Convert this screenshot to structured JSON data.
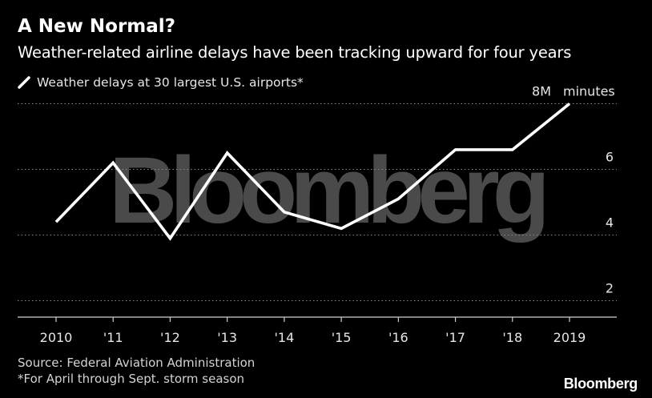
{
  "header": {
    "title": "A New Normal?",
    "subtitle": "Weather-related airline delays have been tracking upward for four years"
  },
  "legend": {
    "label": "Weather delays at 30 largest U.S. airports*"
  },
  "footer": {
    "source": "Source: Federal Aviation Administration",
    "footnote": "*For April through Sept. storm season",
    "brand": "Bloomberg"
  },
  "watermark": "Bloomberg",
  "colors": {
    "background": "#000000",
    "line": "#ffffff",
    "grid": "#8a8a8a",
    "watermark": "#4a4a4a"
  },
  "chart_data": {
    "type": "line",
    "title": "A New Normal?",
    "subtitle": "Weather-related airline delays have been tracking upward for four years",
    "xlabel": "",
    "ylabel": "",
    "unit_label": "minutes",
    "categories": [
      "2010",
      "'11",
      "'12",
      "'13",
      "'14",
      "'15",
      "'16",
      "'17",
      "'18",
      "2019"
    ],
    "series": [
      {
        "name": "Weather delays at 30 largest U.S. airports*",
        "values": [
          4.4,
          6.2,
          3.9,
          6.5,
          4.7,
          4.2,
          5.1,
          6.6,
          6.6,
          8.0
        ]
      }
    ],
    "y_ticks": [
      {
        "value": 2,
        "label": "2"
      },
      {
        "value": 4,
        "label": "4"
      },
      {
        "value": 6,
        "label": "6"
      },
      {
        "value": 8,
        "label": "8M"
      }
    ],
    "ylim": [
      1.5,
      8.5
    ],
    "grid": true,
    "y_axis_position": "right",
    "legend_position": "top-left"
  }
}
